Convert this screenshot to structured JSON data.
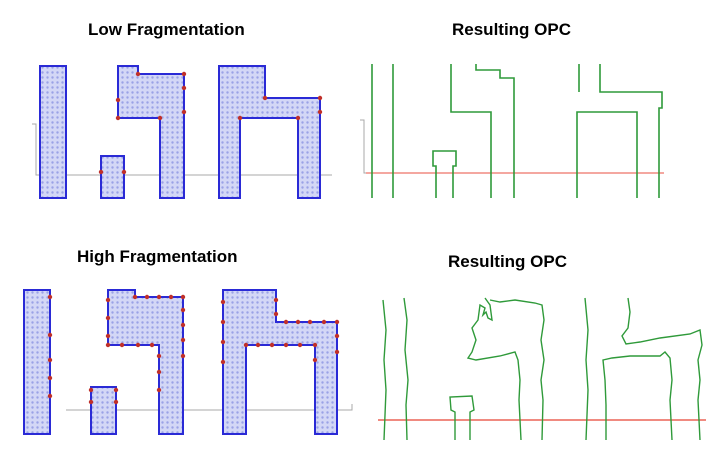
{
  "titles": {
    "low_fragmentation": "Low Fragmentation",
    "low_result": "Resulting OPC",
    "high_fragmentation": "High Fragmentation",
    "high_result": "Resulting OPC"
  },
  "colors": {
    "layout_fill": "#c8cdf2",
    "layout_edge": "#2a2ad6",
    "fragment_point": "#c0302a",
    "opc_edge": "#2f9a3a",
    "baseline_gray": "#a0a0a0",
    "baseline_red": "#f08a80"
  }
}
